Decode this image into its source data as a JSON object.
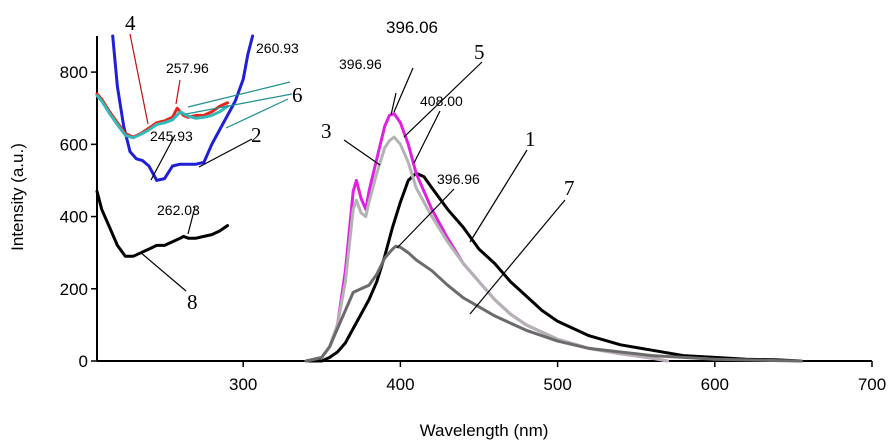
{
  "chart_data": {
    "type": "line",
    "xlabel": "Wavelength (nm)",
    "ylabel": "Intensity (a.u.)",
    "xlim": [
      207,
      700
    ],
    "ylim": [
      0,
      900
    ],
    "xticks": [
      300,
      400,
      500,
      600,
      700
    ],
    "yticks": [
      0,
      200,
      400,
      600,
      800
    ],
    "grid": false,
    "colors": {
      "black": "#000000",
      "blue": "#1f1fd8",
      "red": "#e8241c",
      "cyan": "#34b8b8",
      "magenta": "#e020e0",
      "lightgray": "#b3b3b3",
      "darkgray": "#6b6b6b",
      "teal_leader": "#1f8f8f"
    },
    "series": [
      {
        "label": "1",
        "color": "#000000",
        "x": [
          340,
          350,
          355,
          360,
          365,
          370,
          375,
          380,
          385,
          390,
          395,
          400,
          405,
          410,
          415,
          420,
          425,
          430,
          440,
          450,
          460,
          470,
          480,
          490,
          500,
          520,
          540,
          560,
          580,
          600,
          620,
          640,
          655
        ],
        "y": [
          0,
          0,
          10,
          25,
          50,
          90,
          130,
          170,
          220,
          290,
          370,
          440,
          500,
          520,
          510,
          480,
          450,
          420,
          370,
          310,
          270,
          220,
          180,
          140,
          110,
          70,
          45,
          30,
          15,
          10,
          5,
          3,
          0
        ]
      },
      {
        "label": "3",
        "color": "#e020e0",
        "x": [
          340,
          350,
          355,
          360,
          365,
          370,
          372,
          375,
          378,
          380,
          385,
          390,
          393,
          396,
          400,
          405,
          410,
          420,
          430,
          440,
          450,
          460,
          470,
          480,
          490,
          500,
          520,
          540,
          560,
          570
        ],
        "y": [
          0,
          10,
          40,
          100,
          250,
          470,
          500,
          450,
          420,
          470,
          560,
          650,
          680,
          685,
          660,
          600,
          520,
          420,
          340,
          270,
          220,
          170,
          130,
          100,
          80,
          60,
          35,
          20,
          8,
          0
        ]
      },
      {
        "label": "5",
        "color": "#b3b3b3",
        "x": [
          340,
          350,
          355,
          360,
          365,
          370,
          372,
          375,
          378,
          380,
          385,
          390,
          393,
          396,
          400,
          405,
          410,
          420,
          430,
          440,
          450,
          460,
          470,
          480,
          490,
          500,
          520,
          540,
          560,
          570
        ],
        "y": [
          0,
          10,
          40,
          100,
          220,
          420,
          445,
          410,
          400,
          440,
          520,
          590,
          610,
          620,
          600,
          550,
          480,
          400,
          330,
          270,
          220,
          170,
          130,
          100,
          80,
          60,
          35,
          20,
          8,
          0
        ]
      },
      {
        "label": "7",
        "color": "#6b6b6b",
        "x": [
          340,
          350,
          355,
          360,
          365,
          370,
          375,
          380,
          385,
          390,
          395,
          397,
          400,
          405,
          410,
          420,
          430,
          440,
          450,
          460,
          470,
          480,
          490,
          500,
          520,
          540,
          560,
          580,
          600,
          620,
          640,
          655
        ],
        "y": [
          0,
          10,
          40,
          90,
          140,
          190,
          200,
          210,
          240,
          285,
          310,
          318,
          315,
          300,
          280,
          250,
          210,
          175,
          150,
          125,
          105,
          85,
          70,
          55,
          35,
          25,
          15,
          10,
          5,
          3,
          1,
          0
        ]
      },
      {
        "label": "2",
        "color": "#1f1fd8",
        "x": [
          217,
          220,
          224,
          228,
          232,
          236,
          240,
          245,
          250,
          255,
          260,
          265,
          270,
          275,
          280,
          285,
          290,
          295,
          300,
          303,
          306
        ],
        "y": [
          900,
          760,
          650,
          580,
          560,
          555,
          540,
          500,
          505,
          540,
          545,
          545,
          545,
          550,
          600,
          640,
          680,
          720,
          780,
          850,
          900
        ]
      },
      {
        "label": "4",
        "color": "#e8241c",
        "x": [
          207,
          210,
          215,
          220,
          225,
          230,
          235,
          240,
          245,
          250,
          255,
          258,
          262,
          265,
          270,
          275,
          280,
          285,
          290
        ],
        "y": [
          740,
          725,
          690,
          660,
          630,
          620,
          630,
          645,
          660,
          665,
          675,
          700,
          680,
          675,
          680,
          680,
          690,
          705,
          715
        ]
      },
      {
        "label": "6",
        "color": "#34b8b8",
        "x": [
          207,
          210,
          215,
          220,
          225,
          230,
          235,
          240,
          245,
          250,
          255,
          260,
          265,
          270,
          275,
          280,
          285,
          290
        ],
        "y": [
          735,
          720,
          685,
          655,
          625,
          618,
          628,
          640,
          655,
          660,
          668,
          690,
          678,
          672,
          675,
          680,
          690,
          705
        ]
      },
      {
        "label": "8",
        "color": "#000000",
        "x": [
          207,
          210,
          215,
          220,
          225,
          230,
          235,
          240,
          245,
          250,
          255,
          260,
          262,
          265,
          270,
          275,
          280,
          285,
          290
        ],
        "y": [
          470,
          420,
          370,
          320,
          290,
          290,
          300,
          310,
          320,
          320,
          330,
          340,
          345,
          340,
          340,
          345,
          350,
          360,
          375
        ]
      }
    ],
    "peak_labels": [
      "257.96",
      "260.93",
      "245.93",
      "262.03",
      "396.06",
      "396.96",
      "408.00",
      "396.96"
    ],
    "curve_labels": [
      "1",
      "2",
      "3",
      "4",
      "5",
      "6",
      "7",
      "8"
    ]
  }
}
